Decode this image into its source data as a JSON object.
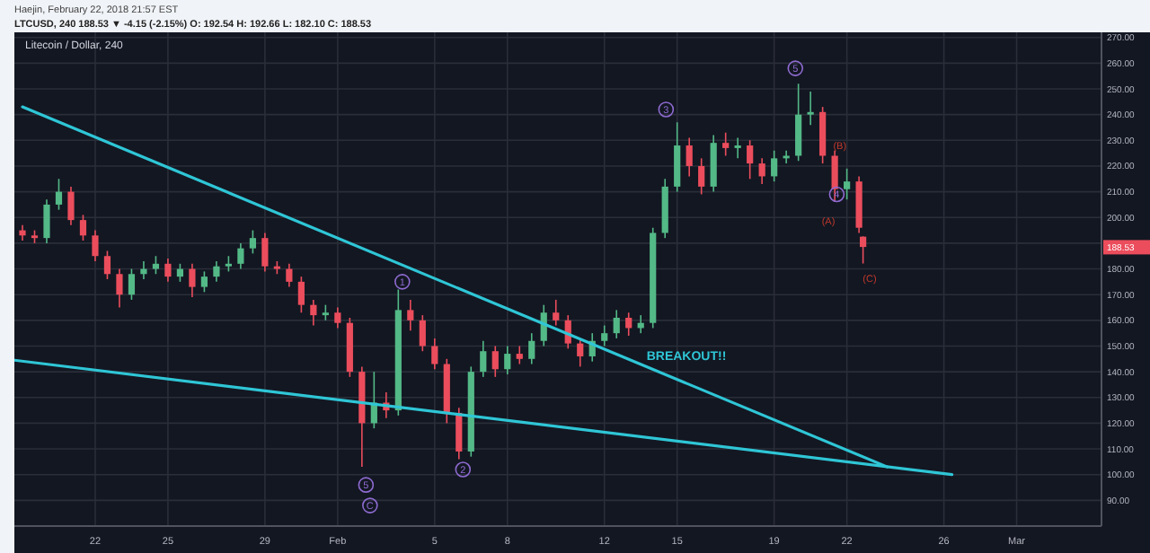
{
  "chart_data": {
    "type": "candlestick",
    "title": "Haejin, February 22, 2018 21:57 EST",
    "subtitle": "LTCUSD, 240 188.53 ▼ -4.15 (-2.15%) O: 192.54 H: 192.66 L: 182.10 C: 188.53",
    "x": [
      "2018-01-19T00:00",
      "2018-01-19T12:00",
      "2018-01-20T00:00",
      "2018-01-20T12:00",
      "2018-01-21T00:00",
      "2018-01-21T12:00",
      "2018-01-22T00:00",
      "2018-01-22T12:00",
      "2018-01-23T00:00",
      "2018-01-23T12:00",
      "2018-01-24T00:00",
      "2018-01-24T12:00",
      "2018-01-25T00:00",
      "2018-01-25T12:00",
      "2018-01-26T00:00",
      "2018-01-26T12:00",
      "2018-01-27T00:00",
      "2018-01-27T12:00",
      "2018-01-28T00:00",
      "2018-01-28T12:00",
      "2018-01-29T00:00",
      "2018-01-29T12:00",
      "2018-01-30T00:00",
      "2018-01-30T12:00",
      "2018-01-31T00:00",
      "2018-01-31T12:00",
      "2018-02-01T00:00",
      "2018-02-01T12:00",
      "2018-02-02T00:00",
      "2018-02-02T12:00",
      "2018-02-03T00:00",
      "2018-02-03T12:00",
      "2018-02-04T00:00",
      "2018-02-04T12:00",
      "2018-02-05T00:00",
      "2018-02-05T12:00",
      "2018-02-06T00:00",
      "2018-02-06T12:00",
      "2018-02-07T00:00",
      "2018-02-07T12:00",
      "2018-02-08T00:00",
      "2018-02-08T12:00",
      "2018-02-09T00:00",
      "2018-02-09T12:00",
      "2018-02-10T00:00",
      "2018-02-10T12:00",
      "2018-02-11T00:00",
      "2018-02-11T12:00",
      "2018-02-12T00:00",
      "2018-02-12T12:00",
      "2018-02-13T00:00",
      "2018-02-13T12:00",
      "2018-02-14T00:00",
      "2018-02-14T12:00",
      "2018-02-15T00:00",
      "2018-02-15T12:00",
      "2018-02-16T00:00",
      "2018-02-16T12:00",
      "2018-02-17T00:00",
      "2018-02-17T12:00",
      "2018-02-18T00:00",
      "2018-02-18T12:00",
      "2018-02-19T00:00",
      "2018-02-19T12:00",
      "2018-02-20T00:00",
      "2018-02-20T12:00",
      "2018-02-21T00:00",
      "2018-02-21T12:00",
      "2018-02-22T00:00",
      "2018-02-22T12:00",
      "2018-02-22T16:00"
    ],
    "ohlc": [
      [
        195,
        197,
        191,
        193
      ],
      [
        193,
        195,
        190,
        192
      ],
      [
        192,
        207,
        190,
        205
      ],
      [
        205,
        215,
        203,
        210
      ],
      [
        210,
        212,
        197,
        199
      ],
      [
        199,
        201,
        191,
        193
      ],
      [
        193,
        195,
        183,
        185
      ],
      [
        185,
        187,
        176,
        178
      ],
      [
        178,
        180,
        165,
        170
      ],
      [
        170,
        180,
        168,
        178
      ],
      [
        178,
        183,
        176,
        180
      ],
      [
        180,
        185,
        178,
        182
      ],
      [
        182,
        184,
        175,
        177
      ],
      [
        177,
        182,
        175,
        180
      ],
      [
        180,
        182,
        169,
        173
      ],
      [
        173,
        179,
        171,
        177
      ],
      [
        177,
        183,
        175,
        181
      ],
      [
        181,
        185,
        179,
        182
      ],
      [
        182,
        190,
        180,
        188
      ],
      [
        188,
        195,
        186,
        192
      ],
      [
        192,
        194,
        179,
        181
      ],
      [
        181,
        183,
        178,
        180
      ],
      [
        180,
        182,
        173,
        175
      ],
      [
        175,
        177,
        163,
        166
      ],
      [
        166,
        168,
        158,
        162
      ],
      [
        162,
        166,
        160,
        163
      ],
      [
        163,
        165,
        157,
        159
      ],
      [
        159,
        161,
        138,
        140
      ],
      [
        140,
        142,
        103,
        120
      ],
      [
        120,
        140,
        118,
        128
      ],
      [
        128,
        132,
        122,
        125
      ],
      [
        125,
        172,
        123,
        164
      ],
      [
        164,
        168,
        156,
        160
      ],
      [
        160,
        162,
        148,
        150
      ],
      [
        150,
        153,
        141,
        143
      ],
      [
        143,
        145,
        120,
        124
      ],
      [
        124,
        126,
        106,
        109
      ],
      [
        109,
        142,
        107,
        140
      ],
      [
        140,
        152,
        138,
        148
      ],
      [
        148,
        150,
        138,
        141
      ],
      [
        141,
        150,
        139,
        147
      ],
      [
        147,
        150,
        143,
        145
      ],
      [
        145,
        155,
        143,
        152
      ],
      [
        152,
        166,
        150,
        163
      ],
      [
        163,
        168,
        158,
        160
      ],
      [
        160,
        162,
        149,
        151
      ],
      [
        151,
        153,
        142,
        146
      ],
      [
        146,
        155,
        144,
        152
      ],
      [
        152,
        158,
        150,
        155
      ],
      [
        155,
        164,
        153,
        161
      ],
      [
        161,
        163,
        154,
        157
      ],
      [
        157,
        162,
        155,
        159
      ],
      [
        159,
        196,
        157,
        194
      ],
      [
        194,
        215,
        192,
        212
      ],
      [
        212,
        237,
        210,
        228
      ],
      [
        228,
        231,
        216,
        220
      ],
      [
        220,
        223,
        209,
        212
      ],
      [
        212,
        232,
        210,
        229
      ],
      [
        229,
        233,
        224,
        227
      ],
      [
        227,
        231,
        223,
        228
      ],
      [
        228,
        230,
        215,
        221
      ],
      [
        221,
        223,
        213,
        216
      ],
      [
        216,
        226,
        214,
        223
      ],
      [
        223,
        226,
        221,
        224
      ],
      [
        224,
        252,
        222,
        240
      ],
      [
        240,
        249,
        236,
        241
      ],
      [
        241,
        243,
        221,
        224
      ],
      [
        224,
        226,
        206,
        211
      ],
      [
        211,
        219,
        207,
        214
      ],
      [
        214,
        216,
        194,
        196
      ],
      [
        192.54,
        192.66,
        182.1,
        188.53
      ]
    ],
    "colors": [
      "#eb4d5c",
      "#eb4d5c",
      "#53b987",
      "#53b987",
      "#eb4d5c",
      "#eb4d5c",
      "#eb4d5c",
      "#eb4d5c",
      "#eb4d5c",
      "#53b987",
      "#53b987",
      "#53b987",
      "#eb4d5c",
      "#53b987",
      "#eb4d5c",
      "#53b987",
      "#53b987",
      "#53b987",
      "#53b987",
      "#53b987",
      "#eb4d5c",
      "#eb4d5c",
      "#eb4d5c",
      "#eb4d5c",
      "#eb4d5c",
      "#53b987",
      "#eb4d5c",
      "#eb4d5c",
      "#eb4d5c",
      "#53b987",
      "#eb4d5c",
      "#53b987",
      "#eb4d5c",
      "#eb4d5c",
      "#eb4d5c",
      "#eb4d5c",
      "#eb4d5c",
      "#53b987",
      "#53b987",
      "#eb4d5c",
      "#53b987",
      "#eb4d5c",
      "#53b987",
      "#53b987",
      "#eb4d5c",
      "#eb4d5c",
      "#eb4d5c",
      "#53b987",
      "#53b987",
      "#53b987",
      "#eb4d5c",
      "#53b987",
      "#53b987",
      "#53b987",
      "#53b987",
      "#eb4d5c",
      "#eb4d5c",
      "#53b987",
      "#eb4d5c",
      "#53b987",
      "#eb4d5c",
      "#eb4d5c",
      "#53b987",
      "#53b987",
      "#53b987",
      "#53b987",
      "#eb4d5c",
      "#eb4d5c",
      "#53b987",
      "#eb4d5c",
      "#eb4d5c"
    ],
    "series": [
      {
        "type": "line",
        "color": "#2fc6d6",
        "x": [
          "2018-01-19T00:00",
          "2018-02-23T16:00"
        ],
        "values": [
          243,
          103
        ]
      },
      {
        "type": "line",
        "color": "#2fc6d6",
        "x": [
          "2018-01-18T16:00",
          "2018-02-26T08:00"
        ],
        "values": [
          144.5,
          100
        ]
      }
    ],
    "annotations": [
      "Litecoin / Dollar, 240",
      {
        "text": "5",
        "x": "2018-02-02T04:00",
        "y": 96
      },
      {
        "text": "C",
        "x": "2018-02-02T08:00",
        "y": 88
      },
      {
        "text": "1",
        "x": "2018-02-03T16:00",
        "y": 175
      },
      {
        "text": "2",
        "x": "2018-02-06T04:00",
        "y": 102
      },
      {
        "text": "3",
        "x": "2018-02-14T13:00",
        "y": 242
      },
      {
        "text": "5",
        "x": "2018-02-19T21:00",
        "y": 258
      },
      {
        "text": "(B)",
        "x": "2018-02-21T17:00",
        "y": 228
      },
      {
        "text": "4",
        "x": "2018-02-21T14:00",
        "y": 209
      },
      "(A)",
      "(C)",
      "BREAKOUT!!",
      "188.53"
    ],
    "xlim": [
      "2018-01-18T16:00",
      "2018-03-04T12:00"
    ],
    "xticks": [
      {
        "value": "2018-01-22",
        "label": "22"
      },
      {
        "value": "2018-01-25",
        "label": "25"
      },
      {
        "value": "2018-01-29",
        "label": "29"
      },
      {
        "value": "2018-02-01",
        "label": "Feb"
      },
      {
        "value": "2018-02-05",
        "label": "5"
      },
      {
        "value": "2018-02-08",
        "label": "8"
      },
      {
        "value": "2018-02-12",
        "label": "12"
      },
      {
        "value": "2018-02-15",
        "label": "15"
      },
      {
        "value": "2018-02-19",
        "label": "19"
      },
      {
        "value": "2018-02-22",
        "label": "22"
      },
      {
        "value": "2018-02-26",
        "label": "26"
      },
      {
        "value": "2018-03-01",
        "label": "Mar"
      }
    ],
    "ylim": [
      80,
      272
    ],
    "yticks": [
      {
        "value": 90,
        "label": "90.00"
      },
      {
        "value": 100,
        "label": "100.00"
      },
      {
        "value": 110,
        "label": "110.00"
      },
      {
        "value": 120,
        "label": "120.00"
      },
      {
        "value": 130,
        "label": "130.00"
      },
      {
        "value": 140,
        "label": "140.00"
      },
      {
        "value": 150,
        "label": "150.00"
      },
      {
        "value": 160,
        "label": "160.00"
      },
      {
        "value": 170,
        "label": "170.00"
      },
      {
        "value": 180,
        "label": "180.00"
      },
      {
        "value": 190,
        "label": null
      },
      {
        "value": 200,
        "label": "200.00"
      },
      {
        "value": 210,
        "label": "210.00"
      },
      {
        "value": 220,
        "label": "220.00"
      },
      {
        "value": 230,
        "label": "230.00"
      },
      {
        "value": 240,
        "label": "240.00"
      },
      {
        "value": 250,
        "label": "250.00"
      },
      {
        "value": 260,
        "label": "260.00"
      },
      {
        "value": 270,
        "label": "270.00"
      }
    ],
    "grid": true
  }
}
